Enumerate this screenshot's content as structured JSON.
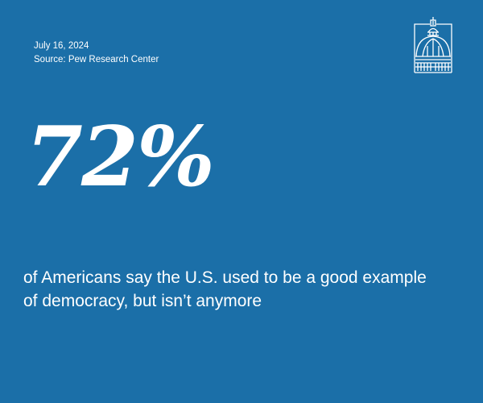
{
  "date": "July 16, 2024",
  "source": "Source: Pew Research Center",
  "stat": "72%",
  "caption": "of Americans say the U.S. used to be a good example of democracy, but isn’t anymore",
  "logo": {
    "icon": "capitol-dome-icon",
    "stroke": "#ffffff"
  },
  "colors": {
    "background": "#1b6fa8",
    "text": "#ffffff"
  }
}
